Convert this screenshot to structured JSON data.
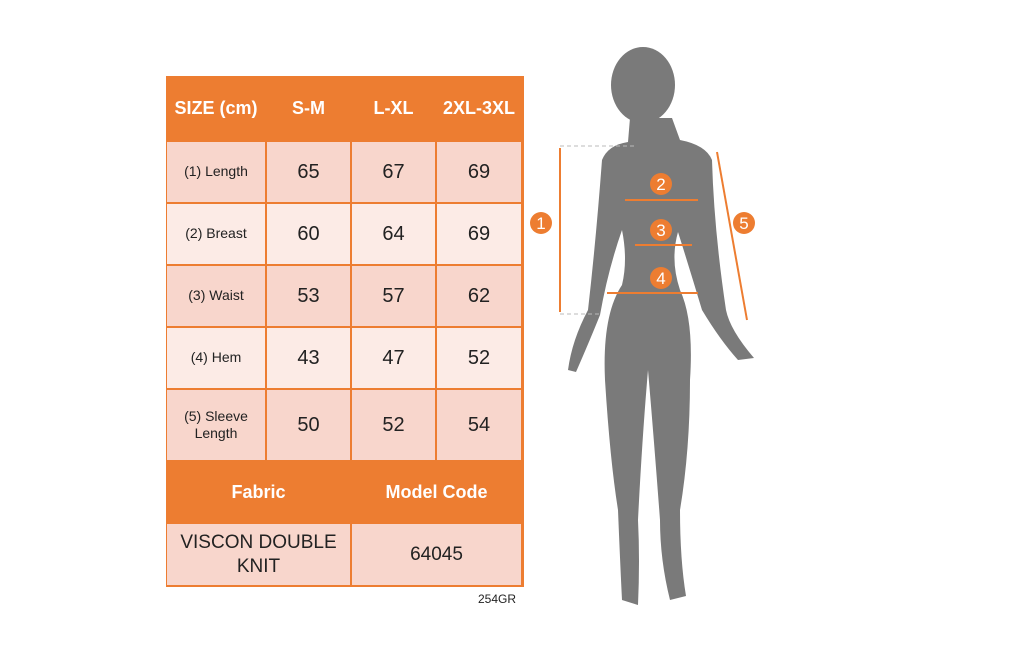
{
  "table": {
    "header": [
      "SIZE (cm)",
      "S-M",
      "L-XL",
      "2XL-3XL"
    ],
    "rows": [
      {
        "label": "(1) Length",
        "values": [
          "65",
          "67",
          "69"
        ]
      },
      {
        "label": "(2) Breast",
        "values": [
          "60",
          "64",
          "69"
        ]
      },
      {
        "label": "(3) Waist",
        "values": [
          "53",
          "57",
          "62"
        ]
      },
      {
        "label": "(4) Hem",
        "values": [
          "43",
          "47",
          "52"
        ]
      },
      {
        "label": "(5) Sleeve Length",
        "values": [
          "50",
          "52",
          "54"
        ]
      }
    ],
    "footer_header": [
      "Fabric",
      "Model Code"
    ],
    "footer_values": [
      "VISCON DOUBLE KNIT",
      "64045"
    ]
  },
  "product_code": "254GR",
  "figure": {
    "markers": [
      "1",
      "2",
      "3",
      "4",
      "5"
    ]
  },
  "colors": {
    "accent": "#ed7d31",
    "row_dark": "#f8d6cc",
    "row_light": "#fcebe6",
    "silhouette": "#7a7a7a"
  }
}
